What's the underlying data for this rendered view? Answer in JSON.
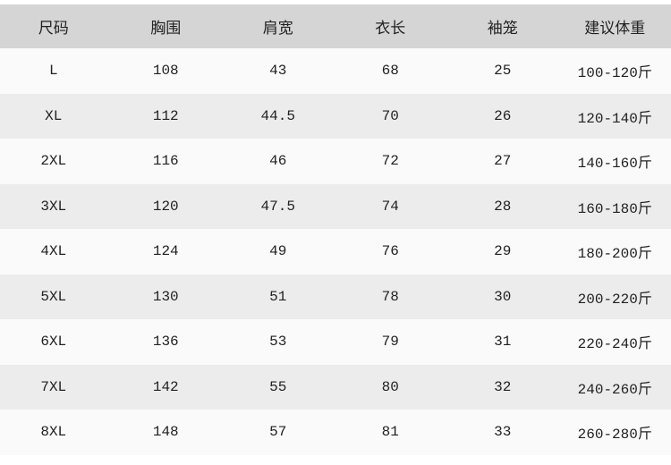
{
  "table": {
    "headers": [
      "尺码",
      "胸围",
      "肩宽",
      "衣长",
      "袖笼",
      "建议体重"
    ],
    "rows": [
      [
        "L",
        "108",
        "43",
        "68",
        "25",
        "100-120斤"
      ],
      [
        "XL",
        "112",
        "44.5",
        "70",
        "26",
        "120-140斤"
      ],
      [
        "2XL",
        "116",
        "46",
        "72",
        "27",
        "140-160斤"
      ],
      [
        "3XL",
        "120",
        "47.5",
        "74",
        "28",
        "160-180斤"
      ],
      [
        "4XL",
        "124",
        "49",
        "76",
        "29",
        "180-200斤"
      ],
      [
        "5XL",
        "130",
        "51",
        "78",
        "30",
        "200-220斤"
      ],
      [
        "6XL",
        "136",
        "53",
        "79",
        "31",
        "220-240斤"
      ],
      [
        "7XL",
        "142",
        "55",
        "80",
        "32",
        "240-260斤"
      ],
      [
        "8XL",
        "148",
        "57",
        "81",
        "33",
        "260-280斤"
      ]
    ]
  }
}
